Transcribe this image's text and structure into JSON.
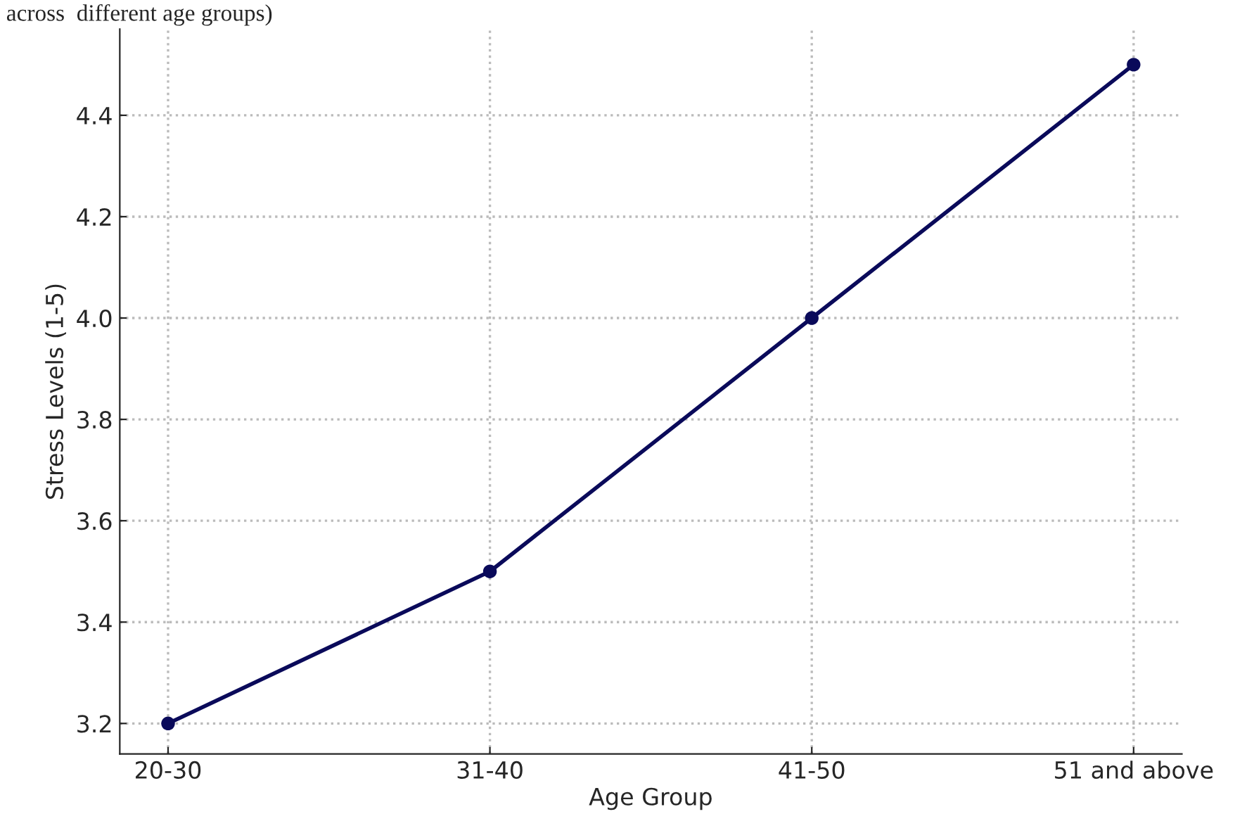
{
  "chart_data": {
    "type": "line",
    "annotations": [
      "across  different age groups)"
    ],
    "xlabel": "Age Group",
    "ylabel": "Stress Levels (1-5)",
    "categories": [
      "20-30",
      "31-40",
      "41-50",
      "51 and above"
    ],
    "series": [
      {
        "color": "#0a0a5a",
        "values": [
          3.2,
          3.5,
          4.0,
          4.5
        ]
      }
    ],
    "ylim": [
      3.14,
      4.57
    ],
    "yticks": [
      3.2,
      3.4,
      3.6,
      3.8,
      {
        "value": 4.0,
        "label": "4.0"
      },
      4.2,
      4.4
    ],
    "grid": true,
    "marker": "circle",
    "line_style": "solid"
  }
}
